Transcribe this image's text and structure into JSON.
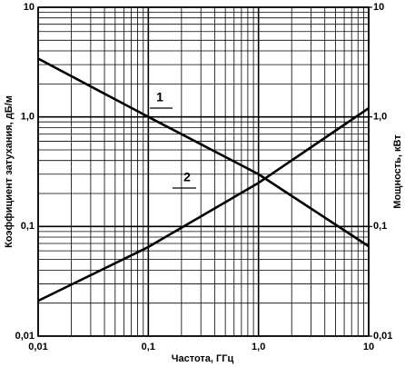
{
  "chart_data": {
    "type": "line",
    "x_label": "Частота, ГГц",
    "y_label": "Коэффициент затухания, дБ/м",
    "y2_label": "Мощность, кВт",
    "log_x": true,
    "log_y": true,
    "grid": true,
    "minor_grid": true,
    "xlim": [
      0.01,
      10
    ],
    "xticks": [
      {
        "value": 0.01,
        "label": "0,01"
      },
      {
        "value": 0.1,
        "label": "0,1"
      },
      {
        "value": 1,
        "label": "1,0"
      },
      10
    ],
    "ylim": [
      0.01,
      10
    ],
    "yticks": [
      {
        "value": 0.01,
        "label": "0,01"
      },
      {
        "value": 0.1,
        "label": "0,1"
      },
      {
        "value": 1,
        "label": "1,0"
      },
      10
    ],
    "y2lim": [
      0.01,
      10
    ],
    "y2ticks": [
      {
        "value": 0.01,
        "label": "0,01"
      },
      {
        "value": 0.1,
        "label": "0,1"
      },
      {
        "value": 1,
        "label": "1,0"
      },
      10
    ],
    "x": [
      0.01,
      0.1,
      1,
      10
    ],
    "series": [
      {
        "name": "1",
        "color": "#000000",
        "values": [
          3.4,
          1.0,
          0.3,
          0.066
        ]
      },
      {
        "name": "2",
        "color": "#000000",
        "axis": "y2",
        "values": [
          0.021,
          0.065,
          0.25,
          1.2
        ]
      }
    ]
  }
}
